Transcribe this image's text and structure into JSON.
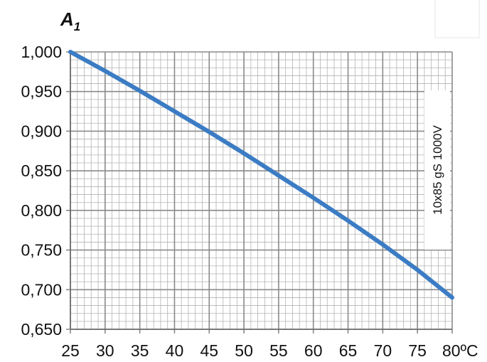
{
  "chart_data": {
    "type": "line",
    "ylabel": {
      "main": "A",
      "subscript": "1"
    },
    "x_ticks": [
      "25",
      "30",
      "35",
      "40",
      "45",
      "50",
      "55",
      "60",
      "65",
      "70",
      "75",
      "80ºC"
    ],
    "y_ticks": [
      "0,650",
      "0,700",
      "0,750",
      "0,800",
      "0,850",
      "0,900",
      "0,950",
      "1,000"
    ],
    "xlim": [
      25,
      80
    ],
    "ylim": [
      0.65,
      1.0
    ],
    "x_minor_step": 1,
    "y_minor_step": 0.01,
    "grid": true,
    "annotation": "10x85 gS 1000V",
    "line_color": "#3B7CC4",
    "series": [
      {
        "x": [
          25,
          30,
          35,
          40,
          45,
          50,
          55,
          60,
          65,
          70,
          75,
          80
        ],
        "y": [
          1.0,
          0.976,
          0.951,
          0.925,
          0.899,
          0.872,
          0.844,
          0.816,
          0.787,
          0.757,
          0.725,
          0.69
        ]
      }
    ]
  }
}
